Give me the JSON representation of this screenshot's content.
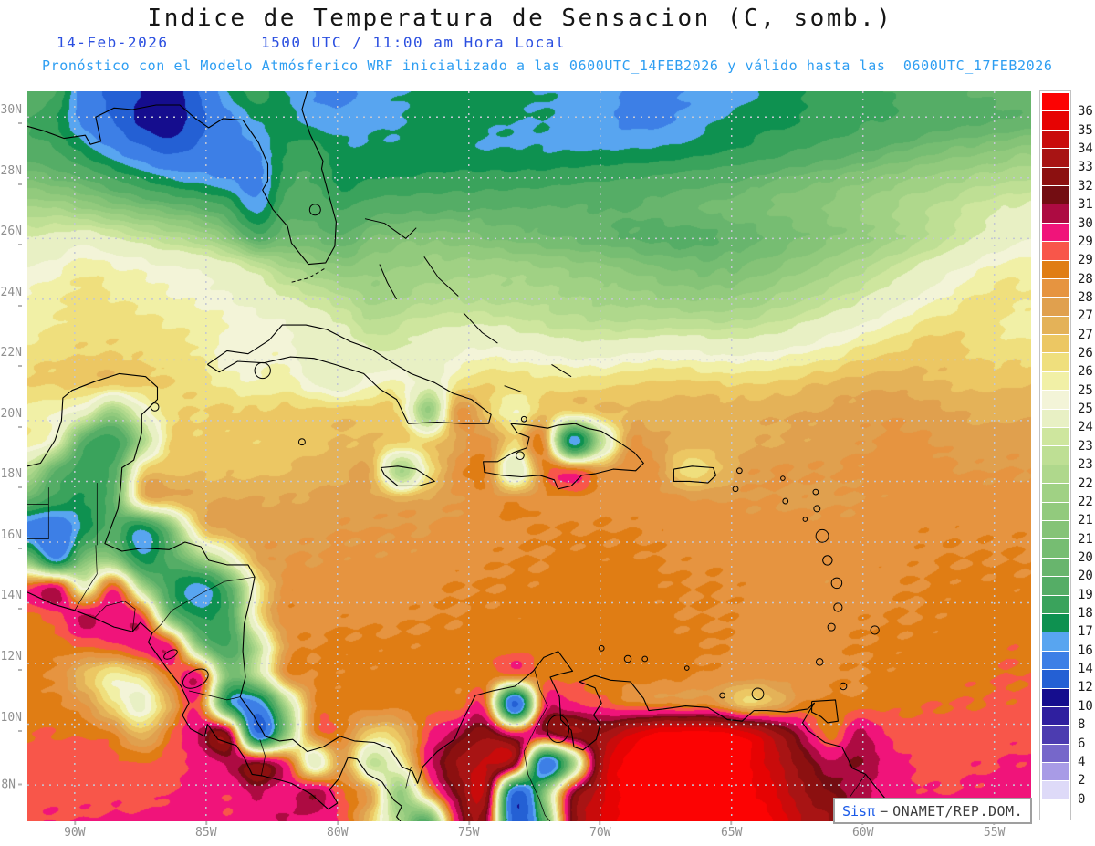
{
  "header": {
    "title": "Indice de Temperatura de Sensacion (C, somb.)",
    "date": "14-Feb-2026",
    "time": "1500 UTC / 11:00 am Hora Local",
    "model_line": "Pronóstico con el Modelo Atmósferico WRF inicializado a las 0600UTC_14FEB2026 y válido hasta las  0600UTC_17FEB2026"
  },
  "attribution": {
    "brand": "Sisπ",
    "separator": "−",
    "org": "ONAMET/REP.DOM."
  },
  "axes": {
    "lat_labels": [
      "30N",
      "28N",
      "26N",
      "24N",
      "22N",
      "20N",
      "18N",
      "16N",
      "14N",
      "12N",
      "10N",
      "8N"
    ],
    "lon_labels": [
      "90W",
      "85W",
      "80W",
      "75W",
      "70W",
      "65W",
      "60W",
      "55W"
    ]
  },
  "colorbar": {
    "labels_top_to_bottom": [
      "36",
      "35",
      "34",
      "33",
      "32",
      "31.5",
      "30.7",
      "29.7",
      "29",
      "28.5",
      "28",
      "27.5",
      "27",
      "26.5",
      "26",
      "25.5",
      "25",
      "24",
      "23.5",
      "23",
      "22.5",
      "22",
      "21.5",
      "21",
      "20.5",
      "20",
      "19",
      "18",
      "17",
      "16",
      "14",
      "12",
      "10",
      "8",
      "6",
      "4",
      "2",
      "0"
    ]
  },
  "chart_data": {
    "type": "heatmap",
    "title": "Indice de Temperatura de Sensacion (C, somb.)",
    "units": "C",
    "lon_range": [
      -91.8,
      -53.6
    ],
    "lat_range": [
      6.8,
      30.85
    ],
    "grid_lon_step": 5,
    "grid_lat_step": 2,
    "levels": [
      0,
      2,
      4,
      6,
      8,
      10,
      12,
      14,
      16,
      17,
      18,
      19,
      20,
      20.5,
      21,
      21.5,
      22,
      22.5,
      23,
      23.5,
      24,
      25,
      25.5,
      26,
      26.5,
      27,
      27.5,
      28,
      28.5,
      29,
      29.7,
      30.7,
      31.5,
      32,
      33,
      34,
      35,
      36
    ],
    "colors_low_to_high": [
      "#ffffff",
      "#dedaf8",
      "#a89be6",
      "#7667ca",
      "#4c3cb0",
      "#2f1f9f",
      "#150d8e",
      "#2460d4",
      "#3d7fe6",
      "#58a5f0",
      "#0e9150",
      "#3aa35c",
      "#55ad66",
      "#68b56d",
      "#76bd72",
      "#85c377",
      "#92ca7d",
      "#a0d184",
      "#afd88c",
      "#bedf94",
      "#cee69e",
      "#e8f0c4",
      "#f3f4d8",
      "#f1f0a6",
      "#efdf7d",
      "#ecc763",
      "#e4b258",
      "#e0a04e",
      "#e69440",
      "#e07d14",
      "#f8564a",
      "#f0147a",
      "#ad0b42",
      "#730d12",
      "#8c1010",
      "#a81414",
      "#c90b0b",
      "#e60303",
      "#fc0303"
    ],
    "field": {
      "nx": 36,
      "ny": 26,
      "row_order": "north_to_south",
      "values": [
        [
          20,
          19,
          15,
          13.5,
          12,
          11,
          14,
          17,
          18.5,
          17,
          16,
          15.5,
          16.5,
          17,
          17.2,
          17.2,
          17.2,
          17.2,
          17,
          16.8,
          16.5,
          15.8,
          15.8,
          16,
          16.5,
          16.5,
          17.6,
          18,
          18.2,
          18.6,
          19,
          19.4,
          19.8,
          20,
          20.2,
          20.4
        ],
        [
          19,
          18,
          15.5,
          14,
          11.5,
          10.5,
          13.5,
          15.5,
          17,
          17.5,
          16.5,
          16.5,
          16.8,
          17,
          17.2,
          17.2,
          17.2,
          17,
          17,
          16.8,
          16.3,
          15.8,
          15.8,
          16.2,
          17,
          17.5,
          17.8,
          18,
          18.4,
          18.8,
          19,
          19.3,
          19.6,
          19.8,
          20,
          20.2
        ],
        [
          19.5,
          19,
          17.5,
          16,
          14.5,
          13.5,
          14.5,
          15.5,
          16,
          18,
          18.5,
          17.2,
          17.2,
          17.2,
          17.2,
          17.2,
          17,
          17,
          17,
          17,
          17,
          17,
          17.1,
          17.4,
          17.8,
          18.2,
          18.6,
          19,
          19.4,
          19.8,
          20.2,
          20.6,
          21,
          21.2,
          21.5,
          21.8
        ],
        [
          21,
          20.5,
          20,
          19,
          18,
          17,
          16.5,
          16,
          15.5,
          18.5,
          19,
          17.5,
          18,
          18,
          18.2,
          18.3,
          18.4,
          18.5,
          18.6,
          18.8,
          18.9,
          19,
          19.2,
          19.5,
          19.7,
          20,
          20.4,
          20.7,
          21,
          21.3,
          21.7,
          22,
          22.3,
          22.6,
          22.8,
          23
        ],
        [
          22.5,
          22.5,
          22,
          21.5,
          21,
          20.5,
          20,
          19,
          16.5,
          19.5,
          19.5,
          19,
          19.5,
          19.7,
          19.8,
          19.9,
          20,
          20,
          20,
          20,
          20,
          20,
          20.2,
          20.4,
          20.6,
          20.8,
          21,
          21.3,
          21.6,
          22,
          22.4,
          22.8,
          23.2,
          23.6,
          24,
          24.2
        ],
        [
          24,
          24.2,
          24.5,
          24,
          23.5,
          23,
          22.5,
          21.5,
          19.5,
          20.5,
          20.5,
          20,
          21,
          21.2,
          21.3,
          21.2,
          21,
          20.8,
          20.6,
          20.4,
          20.2,
          20,
          19.8,
          19.8,
          20,
          20.3,
          20.6,
          21,
          21.4,
          21.8,
          22.3,
          22.8,
          23.4,
          24,
          24.5,
          25
        ],
        [
          25,
          25.3,
          25.8,
          25.5,
          25.3,
          25,
          24.8,
          24.3,
          23.5,
          22.5,
          22,
          21.5,
          21.8,
          22,
          22.2,
          22.3,
          22.3,
          22.2,
          22,
          21.8,
          21.6,
          21.3,
          21,
          20.8,
          20.8,
          21,
          21.4,
          21.8,
          22.3,
          22.8,
          23.4,
          24,
          24.6,
          25.2,
          25.6,
          25.8
        ],
        [
          25.5,
          25.8,
          26.2,
          26,
          25.8,
          25.5,
          25.3,
          25,
          24.5,
          24,
          23.5,
          23,
          22.3,
          22.5,
          22.7,
          22.8,
          22.8,
          22.8,
          22.7,
          22.5,
          22.3,
          22.2,
          22,
          21.8,
          21.8,
          22,
          22.4,
          22.8,
          23.3,
          23.8,
          24.4,
          25,
          25.5,
          26,
          26.2,
          26
        ],
        [
          25.8,
          26,
          26.3,
          26.3,
          26.2,
          26,
          25.8,
          25.5,
          25.2,
          25,
          24.5,
          24,
          23.2,
          23.5,
          23.8,
          24,
          24,
          23.8,
          23.5,
          23.3,
          23.2,
          23.2,
          23.3,
          23.3,
          23.2,
          23.3,
          23.6,
          24,
          24.5,
          25,
          25.5,
          26,
          26.3,
          26.3,
          26,
          25.8
        ],
        [
          26.2,
          26.4,
          26.5,
          26.5,
          26.4,
          26.2,
          26,
          25.2,
          25.2,
          25.4,
          24.2,
          24.6,
          24.2,
          24.2,
          24.5,
          25,
          25.3,
          25.2,
          25,
          24.8,
          24.8,
          25,
          25.2,
          25.2,
          25,
          25,
          25.2,
          25.5,
          25.8,
          26.2,
          26.5,
          26.8,
          26.8,
          26.5,
          26.3,
          26.3
        ],
        [
          26.5,
          26.6,
          26.7,
          26.7,
          26.6,
          26.5,
          26.3,
          25.8,
          25.6,
          25.8,
          25,
          24.5,
          25.4,
          25.6,
          24.5,
          26,
          26.5,
          26.2,
          26.3,
          26.2,
          26.3,
          26.5,
          26.6,
          26.6,
          26.5,
          26.5,
          26.6,
          26.8,
          27,
          27.2,
          27.3,
          27.2,
          27,
          26.9,
          26.9,
          27
        ],
        [
          25.8,
          25.4,
          24.5,
          22,
          24.8,
          26.3,
          26.5,
          26.6,
          26.6,
          26.7,
          26.7,
          26.8,
          26.7,
          26.3,
          22,
          28,
          26.8,
          25.5,
          26.8,
          26.2,
          26.9,
          27.1,
          27.2,
          27.3,
          27.3,
          27.3,
          27.4,
          27.5,
          27.6,
          27.8,
          27.9,
          27.8,
          27.6,
          27.4,
          27.3,
          27.4
        ],
        [
          25.9,
          24.5,
          19.5,
          18.5,
          22.5,
          26.5,
          26.6,
          26.6,
          26.6,
          26.7,
          26.9,
          27,
          27,
          26.6,
          26.5,
          27.6,
          28.2,
          26.5,
          28.3,
          16.5,
          23,
          27.8,
          27.6,
          27.2,
          27.3,
          27.4,
          27.5,
          27.6,
          27.7,
          27.9,
          28.1,
          28.1,
          27.9,
          27.7,
          27.8,
          27.8
        ],
        [
          23,
          20,
          18.5,
          19.5,
          26.3,
          26.8,
          26.9,
          26.9,
          26.9,
          27,
          27.2,
          27.4,
          27.3,
          22.5,
          26,
          28.2,
          28.4,
          24,
          28.6,
          29.3,
          28,
          28.4,
          28,
          26.2,
          26.8,
          27.8,
          28,
          28,
          28,
          28.1,
          28.3,
          28.3,
          28.1,
          28,
          28,
          28
        ],
        [
          20,
          18.5,
          18,
          20,
          26.5,
          27.2,
          27.4,
          27.5,
          27.5,
          27.5,
          27.6,
          27.7,
          27.7,
          27.4,
          27.6,
          28,
          28.3,
          28.3,
          28.3,
          28.3,
          28.3,
          28.3,
          28.2,
          28.1,
          28,
          28,
          28,
          27.9,
          27.9,
          28,
          28.1,
          28.2,
          28.2,
          28.2,
          28.2,
          28.2
        ],
        [
          15.5,
          14.5,
          17.5,
          19.5,
          17,
          21,
          26.5,
          27.6,
          27.8,
          27.8,
          27.9,
          28,
          28,
          28,
          28,
          28.2,
          28.3,
          28.4,
          28.5,
          28.5,
          28.5,
          28.5,
          28.4,
          28.3,
          28.3,
          28.2,
          28.2,
          28.2,
          28.2,
          28.2,
          28.3,
          28.4,
          28.4,
          28.4,
          28.4,
          28.4
        ],
        [
          21,
          16,
          21,
          21.5,
          17.5,
          19.5,
          22,
          24.5,
          27.5,
          28,
          28,
          28.1,
          28.1,
          28.1,
          28.2,
          28.3,
          28.4,
          28.5,
          28.5,
          28.6,
          28.6,
          28.6,
          28.5,
          28.4,
          28.4,
          28.3,
          28.3,
          28.3,
          28.2,
          28.3,
          28.4,
          28.4,
          28.5,
          28.5,
          28.5,
          28.5
        ],
        [
          29.3,
          30.5,
          25,
          29.5,
          23,
          18.5,
          16.5,
          19.5,
          25.5,
          28.2,
          28.2,
          28.3,
          28.3,
          28.3,
          28.4,
          28.5,
          28.5,
          28.6,
          28.6,
          28.7,
          28.7,
          28.7,
          28.6,
          28.5,
          28.5,
          28.4,
          28.3,
          28.3,
          28.1,
          28.3,
          28.4,
          28.5,
          28.6,
          28.6,
          28.6,
          28.6
        ],
        [
          28.9,
          29.3,
          30.8,
          30.2,
          29.6,
          21,
          18,
          19,
          25.8,
          28.3,
          28.3,
          28.4,
          28.4,
          28.4,
          28.5,
          28.5,
          28.6,
          28.6,
          28.7,
          28.7,
          28.7,
          28.7,
          28.6,
          28.5,
          28.5,
          28.4,
          28.3,
          28.2,
          28.3,
          28.4,
          28.5,
          28.5,
          28.6,
          28.7,
          28.7,
          28.7
        ],
        [
          28.7,
          28.8,
          29,
          29.4,
          30.1,
          29.8,
          21.5,
          19,
          23,
          27.8,
          28.5,
          28.6,
          28.6,
          28.6,
          28.6,
          28.7,
          28.7,
          28.7,
          28.7,
          28.8,
          28.8,
          28.8,
          28.7,
          28.6,
          28.5,
          28.4,
          28.3,
          28.3,
          28.4,
          28.5,
          28.6,
          28.6,
          28.7,
          28.8,
          28.9,
          28.9
        ],
        [
          28.6,
          28.4,
          27,
          25.8,
          26.5,
          28.9,
          29.9,
          21,
          23,
          28,
          28.5,
          28.6,
          28.6,
          28.7,
          28.7,
          28.7,
          28.7,
          28.7,
          28.8,
          28.8,
          28.8,
          28.8,
          28.7,
          28.6,
          28.4,
          28.2,
          28.2,
          28.3,
          28.4,
          28.5,
          28.6,
          28.7,
          28.8,
          28.9,
          29,
          29
        ],
        [
          28.7,
          28.6,
          28,
          26.2,
          24.8,
          27.5,
          29.2,
          18,
          15.5,
          22.5,
          28.3,
          28.6,
          28.7,
          28.7,
          28.7,
          28.7,
          28.8,
          13.5,
          29.4,
          29.8,
          29.4,
          28.8,
          28.6,
          28.5,
          28.4,
          26.8,
          27.3,
          28.5,
          28.6,
          28.7,
          28.8,
          28.9,
          29,
          29,
          29.1,
          29.1
        ],
        [
          29,
          29,
          28.9,
          28.5,
          27,
          28.9,
          30.8,
          31.6,
          14.5,
          21.5,
          28.3,
          28.6,
          26.5,
          27,
          29.6,
          31.2,
          32.6,
          30,
          31,
          32.8,
          33,
          34.8,
          36.2,
          36.4,
          36.3,
          35.5,
          33.5,
          31,
          28.7,
          30.9,
          29.6,
          29.3,
          29.3,
          29.4,
          29.5,
          29.5
        ],
        [
          29.3,
          29.3,
          29.3,
          29.2,
          29,
          29.4,
          30,
          30.9,
          31.7,
          29.8,
          24.5,
          27.8,
          23.5,
          25.5,
          30.2,
          33,
          34,
          32,
          15,
          22,
          33.5,
          36.3,
          36.5,
          36.5,
          36.5,
          36.2,
          34.5,
          32.5,
          30.9,
          31.6,
          30.2,
          29.6,
          29.5,
          29.6,
          29.7,
          29.8
        ],
        [
          29.5,
          29.5,
          29.5,
          29.5,
          29.4,
          29.7,
          30,
          29.8,
          30.9,
          30.1,
          31.2,
          29,
          27.5,
          22,
          27.8,
          32,
          33.2,
          14,
          21,
          31,
          34.5,
          36.5,
          36.5,
          36.5,
          36.5,
          36.4,
          35.2,
          33.2,
          32,
          31,
          30.2,
          29.8,
          29.7,
          29.8,
          30,
          30
        ],
        [
          29.7,
          29.7,
          29.7,
          29.8,
          29.8,
          30,
          30.1,
          29.8,
          30.1,
          30.8,
          30.2,
          29.4,
          26.5,
          22.5,
          20,
          30.5,
          31.5,
          13,
          19.5,
          32,
          35,
          36.5,
          36.5,
          36.5,
          36.5,
          36.5,
          36,
          34,
          33,
          32,
          31,
          30.5,
          30.2,
          30.1,
          30.3,
          30.5
        ]
      ]
    }
  }
}
